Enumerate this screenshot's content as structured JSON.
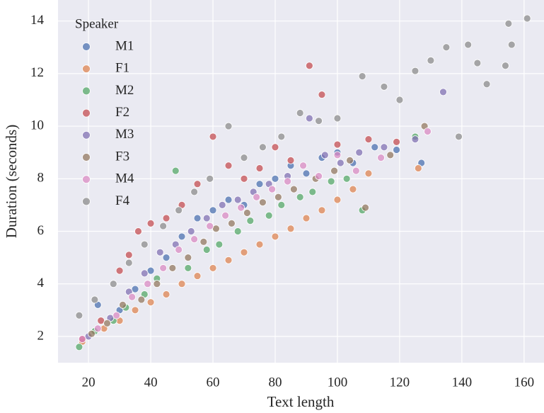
{
  "chart_data": {
    "type": "scatter",
    "xlabel": "Text length",
    "ylabel": "Duration (seconds)",
    "legend_title": "Speaker",
    "legend": "upper left",
    "grid": true,
    "xlim": [
      10.2,
      166.4
    ],
    "xticks": [
      20,
      40,
      60,
      80,
      100,
      120,
      140,
      160
    ],
    "ylim": [
      1.0,
      14.8
    ],
    "yticks": [
      2,
      4,
      6,
      8,
      10,
      12,
      14
    ],
    "series": [
      {
        "name": "M1",
        "color": "#4c72b0",
        "x": [
          23,
          30,
          35,
          40,
          45,
          50,
          55,
          60,
          65,
          70,
          75,
          80,
          85,
          90,
          95,
          100,
          105,
          112,
          119,
          127
        ],
        "values": [
          3.2,
          3.0,
          3.8,
          4.5,
          5.0,
          5.8,
          6.5,
          6.8,
          7.2,
          7.0,
          7.8,
          8.0,
          8.5,
          8.2,
          8.8,
          9.0,
          8.6,
          9.2,
          9.1,
          8.6
        ]
      },
      {
        "name": "F1",
        "color": "#dd8452",
        "x": [
          18,
          25,
          30,
          35,
          40,
          45,
          50,
          55,
          60,
          65,
          70,
          75,
          80,
          85,
          90,
          95,
          100,
          105,
          110,
          126
        ],
        "values": [
          1.8,
          2.3,
          2.6,
          3.0,
          3.3,
          3.6,
          4.0,
          4.3,
          4.6,
          4.9,
          5.2,
          5.5,
          5.8,
          6.1,
          6.5,
          6.8,
          7.2,
          7.6,
          8.2,
          8.4
        ]
      },
      {
        "name": "M2",
        "color": "#55a868",
        "x": [
          17,
          22,
          28,
          32,
          38,
          42,
          48,
          52,
          58,
          62,
          68,
          72,
          78,
          82,
          88,
          92,
          98,
          103,
          108,
          125
        ],
        "values": [
          1.6,
          2.2,
          2.6,
          3.1,
          3.6,
          4.2,
          8.3,
          4.6,
          5.3,
          5.5,
          6.0,
          6.4,
          6.6,
          7.0,
          7.3,
          7.5,
          7.9,
          8.0,
          6.8,
          9.6
        ]
      },
      {
        "name": "F2",
        "color": "#c44e52",
        "x": [
          18,
          24,
          30,
          33,
          36,
          40,
          45,
          50,
          55,
          60,
          65,
          70,
          75,
          80,
          85,
          91,
          95,
          100,
          110,
          119
        ],
        "values": [
          1.9,
          2.6,
          4.5,
          5.1,
          6.0,
          6.3,
          6.5,
          7.0,
          7.8,
          9.6,
          8.5,
          8.0,
          8.4,
          9.2,
          8.7,
          12.3,
          11.2,
          9.3,
          9.5,
          9.4
        ]
      },
      {
        "name": "M3",
        "color": "#8172b3",
        "x": [
          20,
          27,
          33,
          38,
          43,
          48,
          53,
          58,
          63,
          68,
          73,
          78,
          84,
          91,
          96,
          101,
          107,
          115,
          125,
          134
        ],
        "values": [
          2.0,
          2.7,
          3.7,
          4.4,
          5.2,
          5.5,
          6.0,
          6.5,
          7.0,
          7.2,
          7.5,
          7.8,
          8.1,
          10.3,
          8.9,
          8.6,
          9.0,
          9.2,
          9.5,
          11.3
        ]
      },
      {
        "name": "F3",
        "color": "#937860",
        "x": [
          21,
          26,
          31,
          37,
          42,
          47,
          52,
          57,
          61,
          66,
          71,
          76,
          81,
          86,
          93,
          99,
          104,
          109,
          117,
          128
        ],
        "values": [
          2.1,
          2.5,
          3.2,
          3.4,
          4.0,
          4.6,
          5.0,
          5.6,
          6.1,
          6.3,
          6.7,
          7.1,
          7.3,
          7.6,
          8.0,
          8.3,
          8.7,
          6.9,
          8.9,
          10.0
        ]
      },
      {
        "name": "M4",
        "color": "#da8bc3",
        "x": [
          18,
          23,
          29,
          34,
          39,
          44,
          49,
          54,
          59,
          64,
          69,
          74,
          79,
          84,
          89,
          94,
          100,
          106,
          114,
          129
        ],
        "values": [
          1.9,
          2.3,
          2.8,
          3.5,
          4.0,
          4.6,
          5.3,
          5.7,
          6.2,
          6.6,
          6.9,
          7.3,
          7.6,
          7.9,
          8.5,
          8.1,
          8.9,
          8.3,
          8.8,
          9.8
        ]
      },
      {
        "name": "F4",
        "color": "#8c8c8c",
        "x": [
          17,
          22,
          28,
          33,
          38,
          44,
          49,
          54,
          59,
          65,
          70,
          76,
          82,
          88,
          94,
          100,
          108,
          115,
          120,
          125,
          130,
          135,
          139,
          142,
          145,
          148,
          154,
          155,
          156,
          161
        ],
        "values": [
          2.8,
          3.4,
          4.0,
          4.8,
          5.5,
          6.2,
          6.8,
          7.5,
          8.0,
          10.0,
          8.8,
          9.2,
          9.6,
          10.5,
          10.2,
          10.3,
          11.9,
          11.5,
          11.0,
          12.1,
          12.5,
          13.0,
          9.6,
          13.1,
          12.4,
          11.6,
          12.3,
          13.9,
          13.1,
          14.1
        ]
      }
    ]
  }
}
